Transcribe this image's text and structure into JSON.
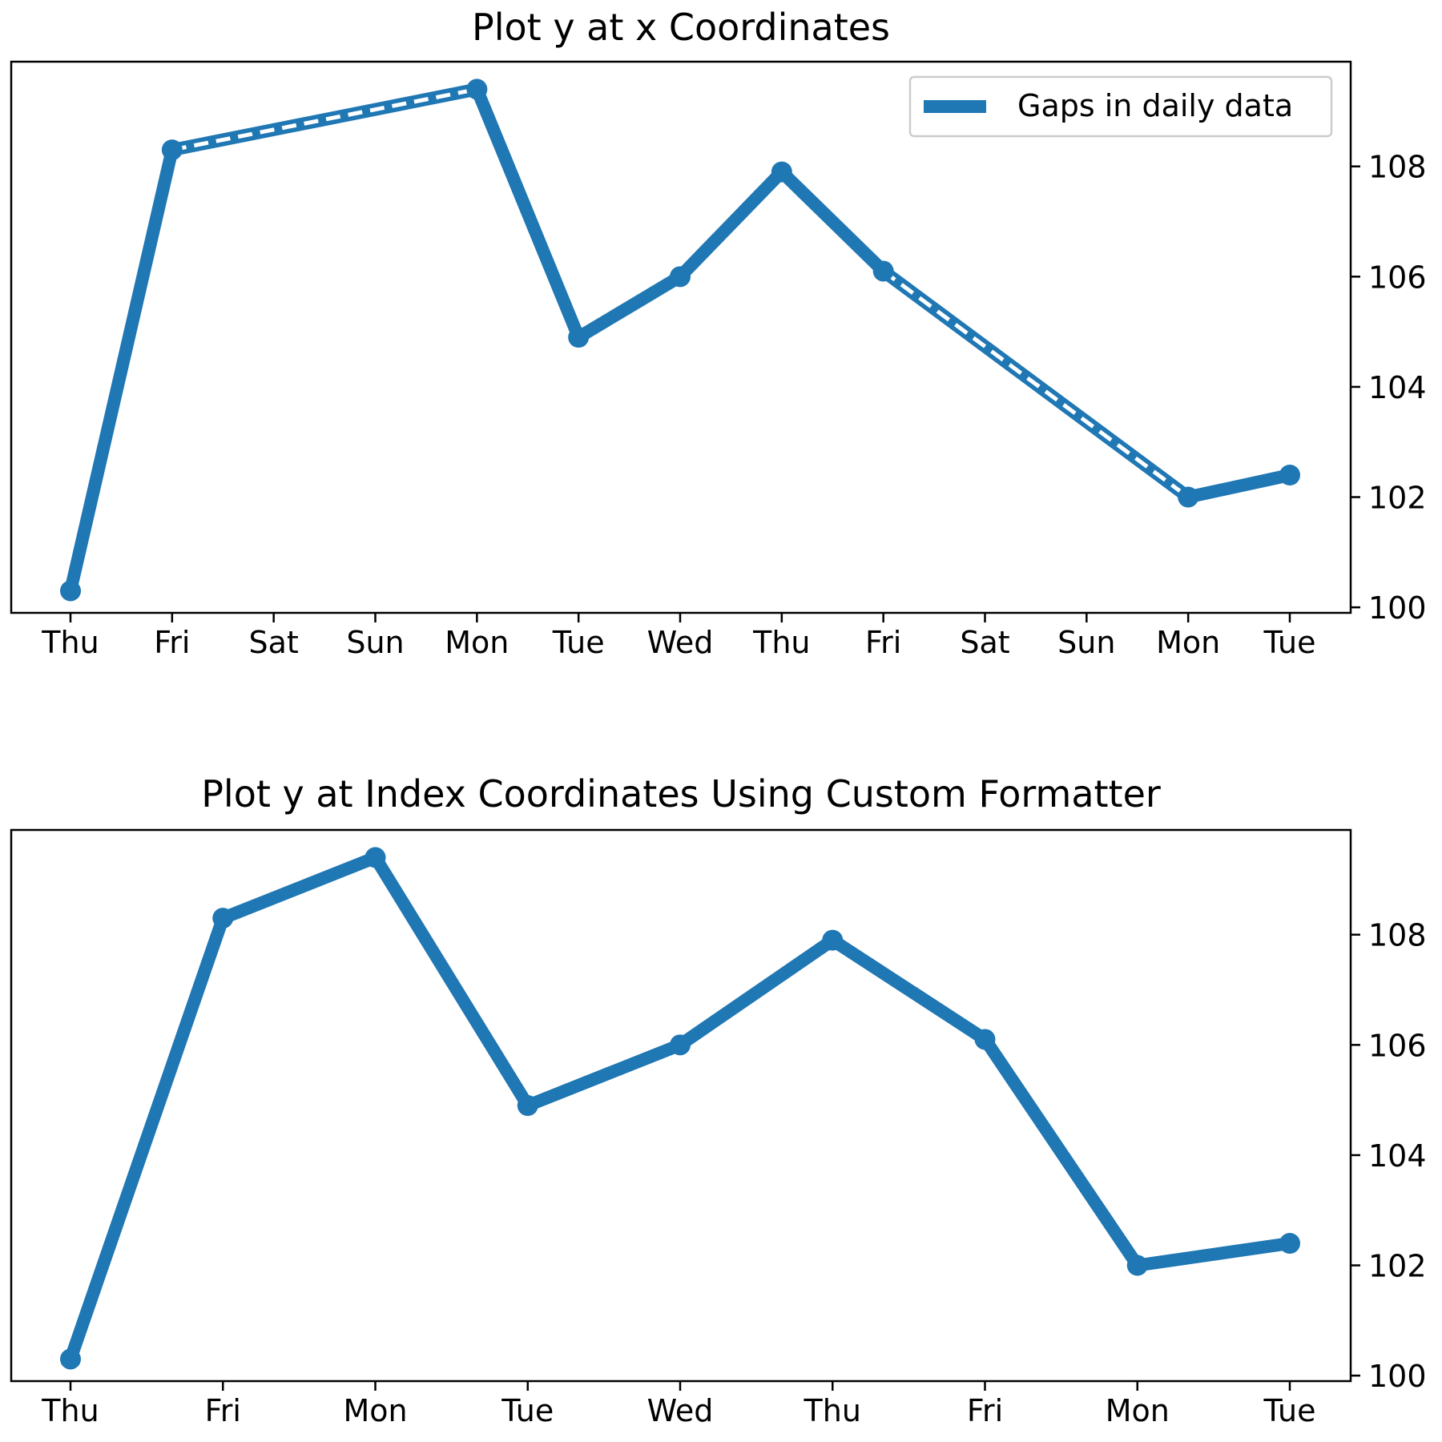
{
  "colors": {
    "series": "#1f77b4"
  },
  "chart_data": [
    {
      "type": "line",
      "title": "Plot y at x Coordinates",
      "x_tick_labels": [
        "Thu",
        "Fri",
        "Sat",
        "Sun",
        "Mon",
        "Tue",
        "Wed",
        "Thu",
        "Fri",
        "Sat",
        "Sun",
        "Mon",
        "Tue"
      ],
      "x": [
        0,
        1,
        4,
        5,
        6,
        7,
        8,
        11,
        12
      ],
      "y": [
        100.3,
        108.3,
        109.4,
        104.9,
        106.0,
        107.9,
        106.1,
        102.0,
        102.4
      ],
      "gaps": [
        [
          1,
          4
        ],
        [
          8,
          11
        ]
      ],
      "ylim": [
        99.9,
        109.9
      ],
      "y_ticks": [
        100,
        102,
        104,
        106,
        108
      ],
      "y_axis_side": "right",
      "legend": {
        "label": "Gaps in daily data",
        "placement": "upper right"
      }
    },
    {
      "type": "line",
      "title": "Plot y at Index Coordinates Using Custom Formatter",
      "x_tick_labels": [
        "Thu",
        "Fri",
        "Mon",
        "Tue",
        "Wed",
        "Thu",
        "Fri",
        "Mon",
        "Tue"
      ],
      "x": [
        0,
        1,
        2,
        3,
        4,
        5,
        6,
        7,
        8
      ],
      "y": [
        100.3,
        108.3,
        109.4,
        104.9,
        106.0,
        107.9,
        106.1,
        102.0,
        102.4
      ],
      "ylim": [
        99.9,
        109.9
      ],
      "y_ticks": [
        100,
        102,
        104,
        106,
        108
      ],
      "y_axis_side": "right"
    }
  ]
}
